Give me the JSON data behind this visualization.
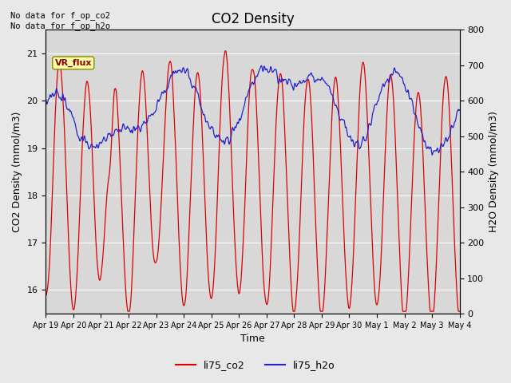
{
  "title": "CO2 Density",
  "xlabel": "Time",
  "ylabel_left": "CO2 Density (mmol/m3)",
  "ylabel_right": "H2O Density (mmol/m3)",
  "ylim_left": [
    15.5,
    21.5
  ],
  "ylim_right": [
    0,
    800
  ],
  "no_data_text": "No data for f_op_co2\nNo data for f_op_h2o",
  "vr_flux_label": "VR_flux",
  "legend_labels": [
    "li75_co2",
    "li75_h2o"
  ],
  "line_colors": [
    "#dd0000",
    "#2222cc"
  ],
  "bg_color": "#e8e8e8",
  "plot_bg_color": "#d8d8d8",
  "figsize": [
    6.4,
    4.8
  ],
  "dpi": 100,
  "xtick_labels": [
    "Apr 19",
    "Apr 20",
    "Apr 21",
    "Apr 22",
    "Apr 23",
    "Apr 24",
    "Apr 25",
    "Apr 26",
    "Apr 27",
    "Apr 28",
    "Apr 29",
    "Apr 30",
    "May 1",
    "May 2",
    "May 3",
    "May 4"
  ],
  "num_points": 1500
}
